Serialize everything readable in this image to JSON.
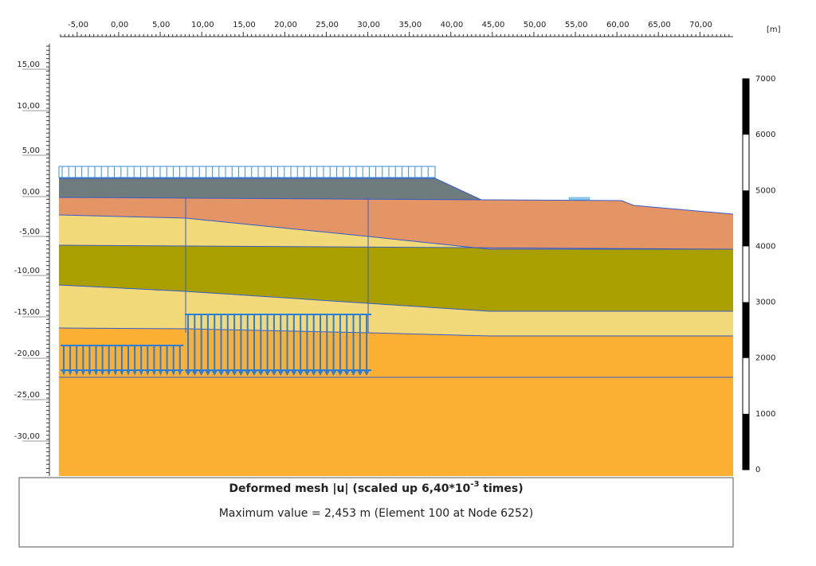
{
  "ruler": {
    "x_ticks": [
      "-5,00",
      "0,00",
      "5,00",
      "10,00",
      "15,00",
      "20,00",
      "25,00",
      "30,00",
      "35,00",
      "40,00",
      "45,00",
      "50,00",
      "55,00",
      "60,00",
      "65,00",
      "70,00"
    ],
    "x_unit": "[m]",
    "y_ticks": [
      "15,00",
      "10,00",
      "5,00",
      "0,00",
      "-5,00",
      "-10,00",
      "-15,00",
      "-20,00",
      "-25,00",
      "-30,00"
    ]
  },
  "legend": {
    "labels": [
      "7000",
      "6000",
      "5000",
      "4000",
      "3000",
      "2000",
      "1000",
      "0"
    ]
  },
  "caption": {
    "title": "Deformed mesh |u| (scaled up 6,40*10",
    "title_exponent": "-3",
    "title_end": " times)",
    "subtitle": "Maximum value = 2,453 m (Element 100 at Node 6252)"
  }
}
